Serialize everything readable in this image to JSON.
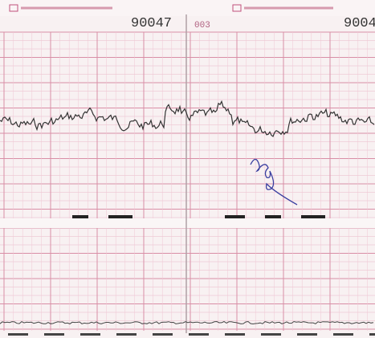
{
  "header": {
    "serial_left": "90047",
    "serial_right": "9004",
    "code": "003"
  }
}
